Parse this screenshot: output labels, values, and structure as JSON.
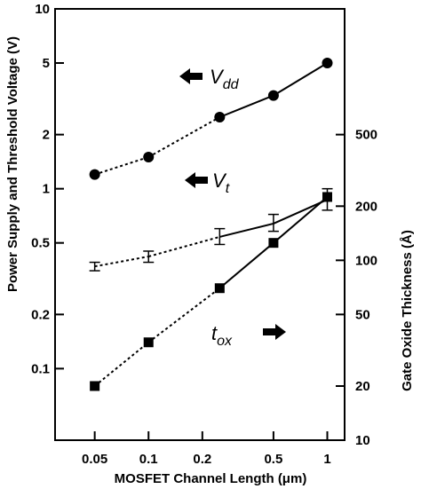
{
  "chart_data": {
    "type": "line",
    "xlabel": "MOSFET Channel Length (μm)",
    "ylabel_left": "Power Supply and Threshold Voltage (V)",
    "ylabel_right": "Gate Oxide Thickness (Å)",
    "x_scale": "log",
    "y_scale": "log",
    "xlim": [
      0.03,
      1.25
    ],
    "ylim_left": [
      0.04,
      10
    ],
    "ylim_right": [
      10,
      2500
    ],
    "x_ticks": [
      "0.05",
      "0.1",
      "0.2",
      "0.5",
      "1"
    ],
    "y_ticks_left": [
      "0.1",
      "0.2",
      "0.5",
      "1",
      "2",
      "5",
      "10"
    ],
    "y_ticks_right": [
      "10",
      "20",
      "50",
      "100",
      "200",
      "500"
    ],
    "grid": false,
    "line_style": "dotted for x < 0.25, solid for x >= 0.25",
    "series": [
      {
        "id": "vdd",
        "label_main": "V",
        "label_sub": "dd",
        "axis": "left",
        "marker": "circle",
        "arrow": "left",
        "x": [
          0.05,
          0.1,
          0.25,
          0.5,
          1.0
        ],
        "y": [
          1.2,
          1.5,
          2.5,
          3.3,
          5.0
        ]
      },
      {
        "id": "vt",
        "label_main": "V",
        "label_sub": "t",
        "axis": "left",
        "marker": "error-bar",
        "arrow": "left",
        "x": [
          0.05,
          0.1,
          0.25,
          0.5,
          1.0
        ],
        "y": [
          0.37,
          0.42,
          0.54,
          0.64,
          0.87
        ],
        "err_low": [
          0.35,
          0.39,
          0.49,
          0.58,
          0.76
        ],
        "err_high": [
          0.39,
          0.45,
          0.6,
          0.72,
          1.0
        ]
      },
      {
        "id": "tox",
        "label_main": "t",
        "label_sub": "ox",
        "axis": "right",
        "marker": "square",
        "arrow": "right",
        "x": [
          0.05,
          0.1,
          0.25,
          0.5,
          1.0
        ],
        "y": [
          20,
          35,
          70,
          125,
          225
        ]
      }
    ]
  }
}
